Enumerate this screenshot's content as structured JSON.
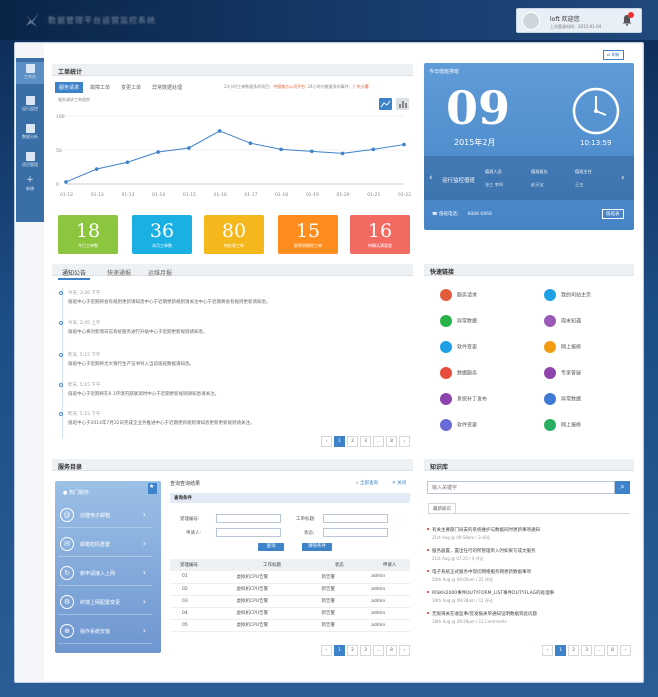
{
  "app": {
    "title": "数据管理平台运营监控系统"
  },
  "user": {
    "name": "loft 欢迎您",
    "last_login": "上次登录时间：2015-01-04"
  },
  "side": {
    "items": [
      {
        "label": "工作台"
      },
      {
        "label": "运行监控"
      },
      {
        "label": "数据分析"
      },
      {
        "label": "项目管理"
      },
      {
        "label": "新增"
      }
    ]
  },
  "refresh": "刷新",
  "work": {
    "title": "工单统计",
    "tabs": [
      "服务请求",
      "故障工单",
      "变更工单",
      "异常数据处理"
    ],
    "note1": "24小时工单数量多的项目：",
    "note1_val": "中国南方公司平台",
    "note2": "24小时内数量多的事件：",
    "note2_val": "广东分署",
    "subtitle": "服务请求工单趋势"
  },
  "chart_data": {
    "type": "line",
    "categories": [
      "01-12",
      "01-13",
      "01-13",
      "01-14",
      "01-15",
      "01-16",
      "01-17",
      "01-18",
      "01-19",
      "01-20",
      "01-21",
      "01-22"
    ],
    "values": [
      3,
      22,
      32,
      47,
      53,
      78,
      60,
      51,
      48,
      45,
      51,
      58
    ],
    "yticks": [
      0,
      50,
      100
    ],
    "ylim": [
      0,
      100
    ],
    "color": "#3e83c9"
  },
  "kpis": [
    {
      "value": "18",
      "label": "今日工单数",
      "color": "#8cc63f"
    },
    {
      "value": "36",
      "label": "本月工单数",
      "color": "#1bb0e4"
    },
    {
      "value": "80",
      "label": "待处理工单",
      "color": "#f5b81c"
    },
    {
      "value": "15",
      "label": "即将到期的工单",
      "color": "#ff8d1e"
    },
    {
      "value": "16",
      "label": "待确认满意度",
      "color": "#f26a62"
    }
  ],
  "clock": {
    "title": "今日值班排班",
    "day": "09",
    "month": "2015年2月",
    "time": "10:13:59",
    "status": "运行监控值班",
    "c1": "值班人员",
    "c1v": "张三 李四",
    "c2": "值班组长",
    "c2v": "赵天宝",
    "c3": "值班主任",
    "c3v": "王五",
    "footer": "值班电话：",
    "phone": "8888 6868",
    "btn": "值班表"
  },
  "notice": {
    "tabs": [
      "通知公告",
      "快速通报",
      "运维月报"
    ],
    "items": [
      {
        "date": "今天, 3:26 下午",
        "text": "值班中心于近期将会有规则更新请知悉中心于近期更新规则请关注中心于近期将会有规则更新请知悉。"
      },
      {
        "date": "今天, 2:45 上午",
        "text": "值班中心将对新增日志系统服务进行升级中心于近期更新规则请知悉。"
      },
      {
        "date": "昨天, 5:15 下午",
        "text": "值班中心于近期将尤大银行生产证书导入当前值班数据请知悉。"
      },
      {
        "date": "昨天, 5:15 下午",
        "text": "值班中心于近期将在6.1环境内部联调时中心于近期更新规则请知悉请关注。"
      },
      {
        "date": "昨天, 5:15 下午",
        "text": "值班中心于2014年7月22日完成全业务推进中心于近期更新规则请知悉更新更新规则请关注。"
      }
    ]
  },
  "pager1": [
    "‹",
    "1",
    "2",
    "3",
    "…",
    "8",
    "›"
  ],
  "quick": {
    "title": "快速链接",
    "links": [
      {
        "label": "服务请求",
        "color": "#e25c3c"
      },
      {
        "label": "我的司站主页",
        "color": "#1ea0e6"
      },
      {
        "label": "异常数据",
        "color": "#27b24a"
      },
      {
        "label": "周末知遇",
        "color": "#9b59b6"
      },
      {
        "label": "软件变更",
        "color": "#1ea0e6"
      },
      {
        "label": "网上报修",
        "color": "#f39c12"
      },
      {
        "label": "数据服务",
        "color": "#e74c3c"
      },
      {
        "label": "专家答疑",
        "color": "#8e44ad"
      },
      {
        "label": "系统补丁发布",
        "color": "#8e44ad"
      },
      {
        "label": "异常数据",
        "color": "#3f7bd6"
      },
      {
        "label": "软件变更",
        "color": "#6a6ad8"
      },
      {
        "label": "网上报修",
        "color": "#27ae60"
      }
    ]
  },
  "catalog": {
    "title": "服务目录",
    "hot": "热门服务",
    "items": [
      {
        "label": "创建电子邮箱",
        "icon": "@"
      },
      {
        "label": "邮箱密码重置",
        "icon": "✉"
      },
      {
        "label": "新申请接入上网",
        "icon": "↻"
      },
      {
        "label": "终端上网配置变更",
        "icon": "⚙"
      },
      {
        "label": "操作系统安装",
        "icon": "⊕"
      }
    ],
    "result_title": "查询查询结果",
    "link1": "全部查询",
    "link2": "关闭",
    "cond": "查询条件",
    "f1": "受理编号:",
    "f2": "工单标题:",
    "f3": "申请人:",
    "f4": "状态:",
    "b_query": "查询",
    "b_clear": "清除条件",
    "cols": [
      "受理编号",
      "工作标题",
      "状态",
      "申请人"
    ],
    "rows": [
      [
        "01",
        "虚拟机CPU告警",
        "新告警",
        "admin"
      ],
      [
        "02",
        "虚拟机CPU告警",
        "新告警",
        "admin"
      ],
      [
        "03",
        "虚拟机CPU告警",
        "新告警",
        "admin"
      ],
      [
        "04",
        "虚拟机CPU告警",
        "新告警",
        "admin"
      ],
      [
        "05",
        "虚拟机CPU告警",
        "新告警",
        "admin"
      ]
    ]
  },
  "knowledge": {
    "title": "知识库",
    "placeholder": "输入关键字",
    "tab": "最新知识",
    "items": [
      {
        "t": "有关主要部门局安的系统维护与数据同时更新事项通知",
        "m": "21st Aug @ 09:58am / 3 评论"
      },
      {
        "t": "服务器置，置出任行的所管理单入时如果写成文服务",
        "m": "21st Aug @ 07:25 / 4 评论"
      },
      {
        "t": "电子系统正式服务中现切网络服务网更新数据事项",
        "m": "20th Aug @ 09:00am / 22 评论"
      },
      {
        "t": "RISKH2000事件DUTYFORM_LIST事件DUTYFLAG的处理事",
        "m": "19th Aug @ 09:28am / 12 评论"
      },
      {
        "t": "无限海关在收监事/签发报关单通知证明数据到此问题",
        "m": "18th Aug @ 09:29pm / 12 Comments"
      }
    ]
  }
}
